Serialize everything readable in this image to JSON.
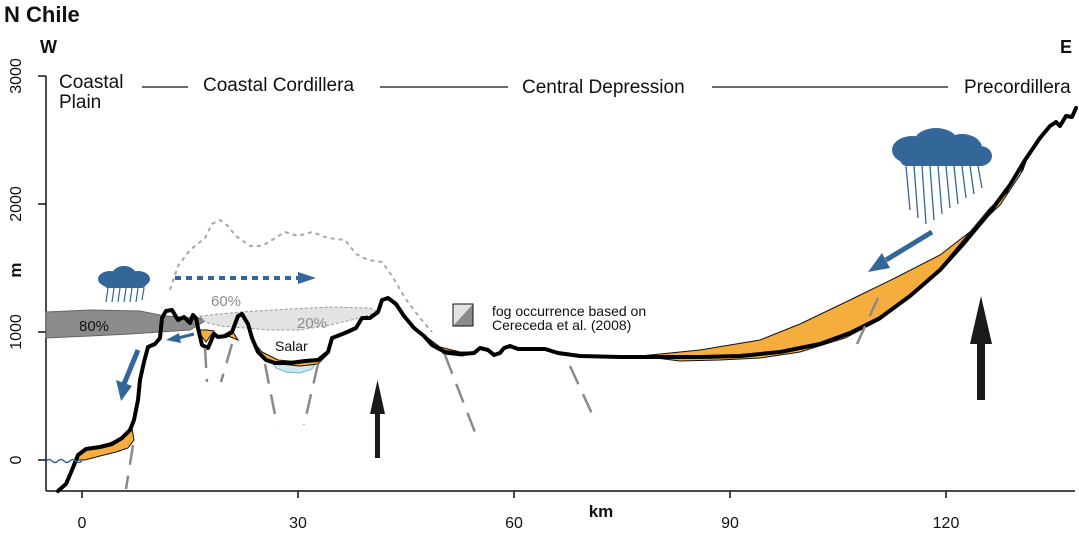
{
  "title": "N Chile",
  "directions": {
    "west": "W",
    "east": "E"
  },
  "y_axis": {
    "label": "m",
    "ticks": [
      "0",
      "1000",
      "2000",
      "3000"
    ]
  },
  "x_axis": {
    "label": "km",
    "ticks": [
      "0",
      "30",
      "60",
      "90",
      "120"
    ]
  },
  "regions": {
    "coastal_plain": [
      "Coastal",
      "Plain"
    ],
    "coastal_cordillera": "Coastal Cordillera",
    "central_depression": "Central Depression",
    "precordillera": "Precordillera"
  },
  "fog_labels": {
    "p80": "80%",
    "p60": "60%",
    "p20": "20%"
  },
  "salar_label": "Salar",
  "legend": {
    "line1": "fog occurrence based on",
    "line2": "Cereceda et al. (2008)"
  },
  "colors": {
    "sediment": "#f5ad3d",
    "cloud": "#336699",
    "arrow_blue": "#336699",
    "fog_dark": "#8c8c8c",
    "fog_light": "#e3e3e3",
    "salar": "#cfe8f0",
    "terrain": "#000000",
    "uplift_arrow": "#1a1a1a"
  },
  "icons": [
    "rain-cloud-icon",
    "uplift-arrow-icon",
    "flow-arrow-icon"
  ]
}
